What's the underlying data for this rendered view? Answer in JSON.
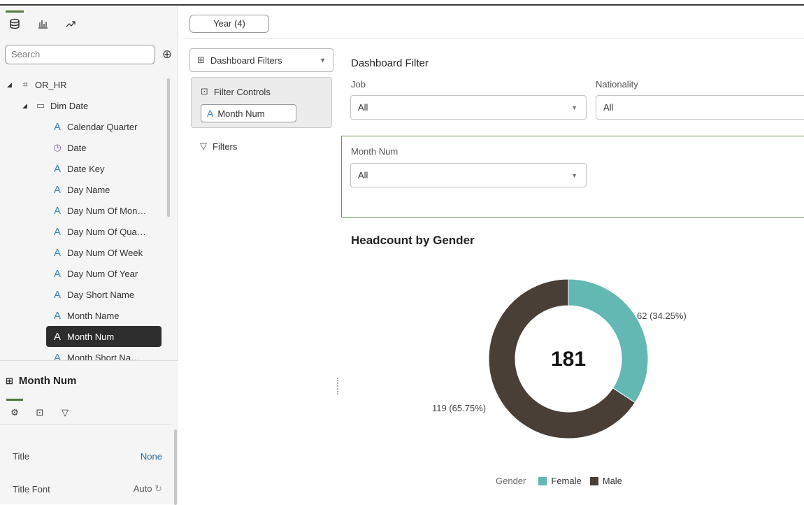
{
  "data_panel": {
    "search_placeholder": "Search",
    "tree": [
      {
        "label": "OR_HR",
        "level": 0,
        "icon": "subject-area-icon",
        "expanded": true
      },
      {
        "label": "Dim Date",
        "level": 1,
        "icon": "folder-icon",
        "expanded": true
      },
      {
        "label": "Calendar Quarter",
        "level": 2,
        "icon": "attribute-icon"
      },
      {
        "label": "Date",
        "level": 2,
        "icon": "clock-icon"
      },
      {
        "label": "Date Key",
        "level": 2,
        "icon": "attribute-icon"
      },
      {
        "label": "Day Name",
        "level": 2,
        "icon": "attribute-icon"
      },
      {
        "label": "Day Num Of Mon…",
        "level": 2,
        "icon": "attribute-icon"
      },
      {
        "label": "Day Num Of Qua…",
        "level": 2,
        "icon": "attribute-icon"
      },
      {
        "label": "Day Num Of Week",
        "level": 2,
        "icon": "attribute-icon"
      },
      {
        "label": "Day Num Of Year",
        "level": 2,
        "icon": "attribute-icon"
      },
      {
        "label": "Day Short Name",
        "level": 2,
        "icon": "attribute-icon"
      },
      {
        "label": "Month Name",
        "level": 2,
        "icon": "attribute-icon"
      },
      {
        "label": "Month Num",
        "level": 2,
        "icon": "attribute-icon",
        "selected": true
      },
      {
        "label": "Month Short Na…",
        "level": 2,
        "icon": "attribute-icon"
      }
    ]
  },
  "properties": {
    "title": "Month Num",
    "rows": [
      {
        "key": "Title",
        "value": "None"
      },
      {
        "key": "Title Font",
        "value": "Auto"
      }
    ]
  },
  "filter_bar": {
    "year_pill": "Year (4)",
    "dashboard_filters": "Dashboard Filters",
    "filter_controls": "Filter Controls",
    "filter_control_item": "Month Num",
    "filters_label": "Filters"
  },
  "canvas": {
    "dashboard_filter_title": "Dashboard Filter",
    "job": {
      "label": "Job",
      "value": "All"
    },
    "nationality": {
      "label": "Nationality",
      "value": "All"
    },
    "month_num": {
      "label": "Month Num",
      "value": "All"
    }
  },
  "chart_data": {
    "type": "pie",
    "title": "Headcount by Gender",
    "center_label": "181",
    "legend_title": "Gender",
    "categories": [
      "Female",
      "Male"
    ],
    "values": [
      62,
      119
    ],
    "percent_labels": [
      "62 (34.25%)",
      "119 (65.75%)"
    ],
    "colors": [
      "#63b8b4",
      "#4a3f37"
    ],
    "legend_position": "bottom"
  }
}
